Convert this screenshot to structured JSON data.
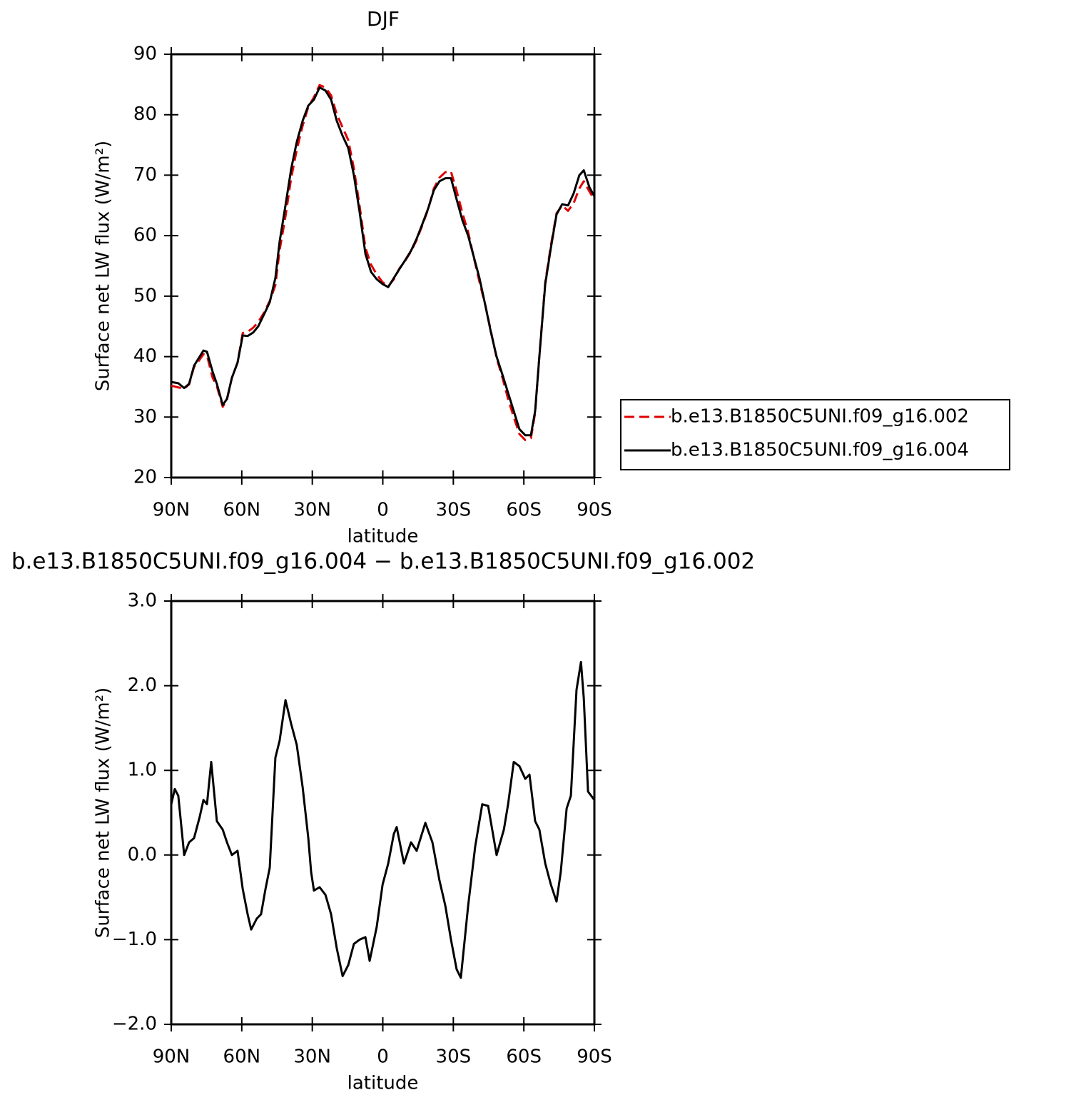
{
  "chart_data": [
    {
      "type": "line",
      "title": "DJF",
      "xlabel": "latitude",
      "ylabel": "Surface net LW flux (W/m²)",
      "xlim": [
        90,
        -90
      ],
      "ylim": [
        20,
        90
      ],
      "xticks": [
        {
          "value": 90,
          "label": "90N"
        },
        {
          "value": 60,
          "label": "60N"
        },
        {
          "value": 30,
          "label": "30N"
        },
        0,
        {
          "value": -30,
          "label": "30S"
        },
        {
          "value": -60,
          "label": "60S"
        },
        {
          "value": -90,
          "label": "90S"
        }
      ],
      "yticks": [
        20,
        30,
        40,
        50,
        60,
        70,
        80,
        90
      ],
      "legend": "right",
      "x": [
        90,
        87.0,
        84.5,
        82.4,
        80.3,
        77.9,
        76.3,
        74.8,
        72.4,
        70.6,
        68.1,
        66.3,
        64.2,
        61.8,
        59.6,
        57.5,
        55.1,
        53.0,
        50.5,
        48.1,
        45.7,
        43.9,
        41.4,
        39.0,
        36.6,
        34.1,
        31.7,
        29.3,
        26.9,
        24.4,
        22.0,
        19.6,
        17.1,
        14.7,
        12.3,
        9.9,
        7.4,
        5.0,
        2.6,
        0.1,
        -2.3,
        -4.7,
        -7.1,
        -9.6,
        -12.0,
        -14.4,
        -16.9,
        -19.3,
        -21.7,
        -24.1,
        -26.6,
        -29.0,
        -31.4,
        -33.9,
        -36.3,
        -38.7,
        -41.1,
        -43.6,
        -46.0,
        -48.4,
        -50.9,
        -53.3,
        -55.7,
        -58.1,
        -60.6,
        -63.0,
        -64.8,
        -66.6,
        -69.1,
        -71.5,
        -73.9,
        -76.3,
        -78.8,
        -81.2,
        -83.6,
        -85.5,
        -87.9,
        -90
      ],
      "series": [
        {
          "name": "b.e13.B1850C5UNI.f09_g16.002",
          "color": "#e00000",
          "line_style": "dashed",
          "values": [
            35.2,
            34.9,
            34.7,
            35.4,
            38.3,
            39.5,
            40.4,
            40.2,
            36.5,
            35.1,
            31.7,
            32.9,
            36.5,
            39.0,
            43.9,
            44.1,
            44.8,
            45.7,
            47.3,
            49.2,
            51.8,
            57.6,
            63.2,
            69.5,
            74.2,
            78.2,
            81.3,
            82.9,
            84.9,
            84.5,
            83.2,
            80.1,
            77.9,
            75.8,
            71.1,
            65.0,
            58.0,
            55.2,
            53.6,
            52.3,
            51.6,
            52.8,
            54.6,
            55.9,
            57.4,
            59.3,
            61.8,
            64.4,
            67.8,
            69.6,
            70.5,
            70.6,
            67.4,
            63.7,
            60.6,
            56.4,
            52.4,
            48.5,
            44.2,
            39.8,
            36.5,
            33.0,
            30.0,
            27.2,
            26.2,
            26.5,
            30.7,
            40.1,
            52.3,
            58.4,
            63.7,
            65.0,
            64.1,
            65.4,
            67.8,
            69.0,
            67.3,
            65.9
          ]
        },
        {
          "name": "b.e13.B1850C5UNI.f09_g16.004",
          "color": "#000000",
          "line_style": "solid",
          "values": [
            35.8,
            35.6,
            34.8,
            35.5,
            38.5,
            40.0,
            41.0,
            40.8,
            37.5,
            35.5,
            32.0,
            33.0,
            36.5,
            39.0,
            43.5,
            43.4,
            44.0,
            45.0,
            47.0,
            49.0,
            53.0,
            59.0,
            65.0,
            71.0,
            75.5,
            79.0,
            81.5,
            82.5,
            84.5,
            84.0,
            82.5,
            79.0,
            76.5,
            74.5,
            70.0,
            64.0,
            57.0,
            54.0,
            52.8,
            52.0,
            51.5,
            53.0,
            54.5,
            56.0,
            57.5,
            59.5,
            62.0,
            64.5,
            67.5,
            69.0,
            69.5,
            69.5,
            66.0,
            62.5,
            60.0,
            56.5,
            53.0,
            48.5,
            44.0,
            40.0,
            37.0,
            34.0,
            31.0,
            28.0,
            27.0,
            27.0,
            31.0,
            40.0,
            52.0,
            58.0,
            63.5,
            65.2,
            65.0,
            67.0,
            70.0,
            70.8,
            68.0,
            66.5
          ]
        }
      ]
    },
    {
      "type": "line",
      "title": "b.e13.B1850C5UNI.f09_g16.004 − b.e13.B1850C5UNI.f09_g16.002",
      "xlabel": "latitude",
      "ylabel": "Surface net LW flux (W/m²)",
      "xlim": [
        90,
        -90
      ],
      "ylim": [
        -2,
        3
      ],
      "xticks": [
        {
          "value": 90,
          "label": "90N"
        },
        {
          "value": 60,
          "label": "60N"
        },
        {
          "value": 30,
          "label": "30N"
        },
        0,
        {
          "value": -30,
          "label": "30S"
        },
        {
          "value": -60,
          "label": "60S"
        },
        {
          "value": -90,
          "label": "90S"
        }
      ],
      "yticks": [
        {
          "value": -2,
          "label": "−2.0"
        },
        {
          "value": -1,
          "label": "−1.0"
        },
        {
          "value": 0,
          "label": "0.0"
        },
        {
          "value": 1,
          "label": "1.0"
        },
        {
          "value": 2,
          "label": "2.0"
        },
        {
          "value": 3,
          "label": "3.0"
        }
      ],
      "color": "#000000",
      "x": [
        90,
        88.5,
        87.0,
        84.5,
        82.4,
        80.3,
        77.9,
        76.3,
        74.8,
        73.0,
        70.6,
        68.1,
        66.3,
        64.2,
        61.8,
        59.6,
        57.5,
        56.0,
        53.6,
        51.8,
        49.9,
        48.1,
        45.7,
        43.9,
        41.4,
        39.0,
        36.6,
        34.1,
        31.7,
        30.5,
        29.3,
        26.9,
        24.4,
        22.0,
        19.6,
        17.1,
        14.7,
        12.3,
        9.9,
        7.4,
        5.6,
        2.6,
        0.1,
        -2.3,
        -4.7,
        -5.9,
        -9.0,
        -12.0,
        -14.4,
        -18.1,
        -21.1,
        -24.1,
        -26.6,
        -29.0,
        -31.4,
        -33.2,
        -36.3,
        -39.3,
        -42.3,
        -44.8,
        -48.4,
        -51.5,
        -53.3,
        -55.7,
        -58.1,
        -60.6,
        -62.4,
        -64.8,
        -66.6,
        -69.1,
        -71.5,
        -73.9,
        -75.7,
        -78.2,
        -80.0,
        -82.4,
        -84.3,
        -85.5,
        -87.3,
        -90
      ],
      "values": [
        0.6,
        0.78,
        0.7,
        0.0,
        0.15,
        0.2,
        0.45,
        0.65,
        0.6,
        1.1,
        0.4,
        0.3,
        0.15,
        0.0,
        0.05,
        -0.4,
        -0.7,
        -0.88,
        -0.75,
        -0.7,
        -0.4,
        -0.15,
        1.15,
        1.35,
        1.83,
        1.55,
        1.3,
        0.8,
        0.2,
        -0.2,
        -0.42,
        -0.38,
        -0.47,
        -0.7,
        -1.1,
        -1.43,
        -1.3,
        -1.05,
        -1.0,
        -0.97,
        -1.25,
        -0.85,
        -0.35,
        -0.1,
        0.25,
        0.33,
        -0.1,
        0.15,
        0.05,
        0.38,
        0.15,
        -0.3,
        -0.6,
        -1.0,
        -1.35,
        -1.45,
        -0.6,
        0.1,
        0.6,
        0.58,
        0.0,
        0.3,
        0.6,
        1.1,
        1.05,
        0.9,
        0.95,
        0.4,
        0.3,
        -0.1,
        -0.35,
        -0.55,
        -0.2,
        0.55,
        0.7,
        1.95,
        2.28,
        1.85,
        0.75,
        0.65
      ]
    }
  ]
}
